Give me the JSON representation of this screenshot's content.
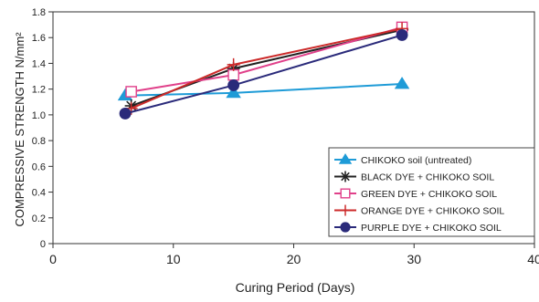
{
  "chart_data": {
    "type": "line",
    "title": "",
    "xlabel": "Curing Period (Days)",
    "ylabel": "COMPRESSIVE STRENGTH N/mm²",
    "xlim": [
      0,
      40
    ],
    "ylim": [
      0,
      1.8
    ],
    "x_ticks": [
      "0",
      "10",
      "20",
      "30",
      "40"
    ],
    "y_ticks": [
      "0",
      "0.2",
      "0.4",
      "0.6",
      "0.8",
      "1.0",
      "1.2",
      "1.4",
      "1.6",
      "1.8"
    ],
    "grid": false,
    "legend_position": "bottom-right",
    "series": [
      {
        "name": "CHIKOKO soil (untreated)",
        "color": "#1e9bd7",
        "marker": "triangle",
        "x": [
          6,
          15,
          29
        ],
        "y": [
          1.15,
          1.17,
          1.24
        ]
      },
      {
        "name": "BLACK DYE + CHIKOKO SOIL",
        "color": "#222222",
        "marker": "asterisk",
        "x": [
          6.5,
          15,
          29
        ],
        "y": [
          1.07,
          1.36,
          1.66
        ]
      },
      {
        "name": "GREEN DYE + CHIKOKO SOIL",
        "color": "#e0408a",
        "marker": "open-square",
        "x": [
          6.5,
          15,
          29
        ],
        "y": [
          1.18,
          1.31,
          1.68
        ]
      },
      {
        "name": "ORANGE DYE + CHIKOKO SOIL",
        "color": "#cc2a2a",
        "marker": "plus",
        "x": [
          6.5,
          15,
          29
        ],
        "y": [
          1.05,
          1.39,
          1.67
        ]
      },
      {
        "name": "PURPLE DYE + CHIKOKO SOIL",
        "color": "#2a2a7a",
        "marker": "filled-circle",
        "x": [
          6,
          15,
          29
        ],
        "y": [
          1.01,
          1.23,
          1.62
        ]
      }
    ]
  }
}
